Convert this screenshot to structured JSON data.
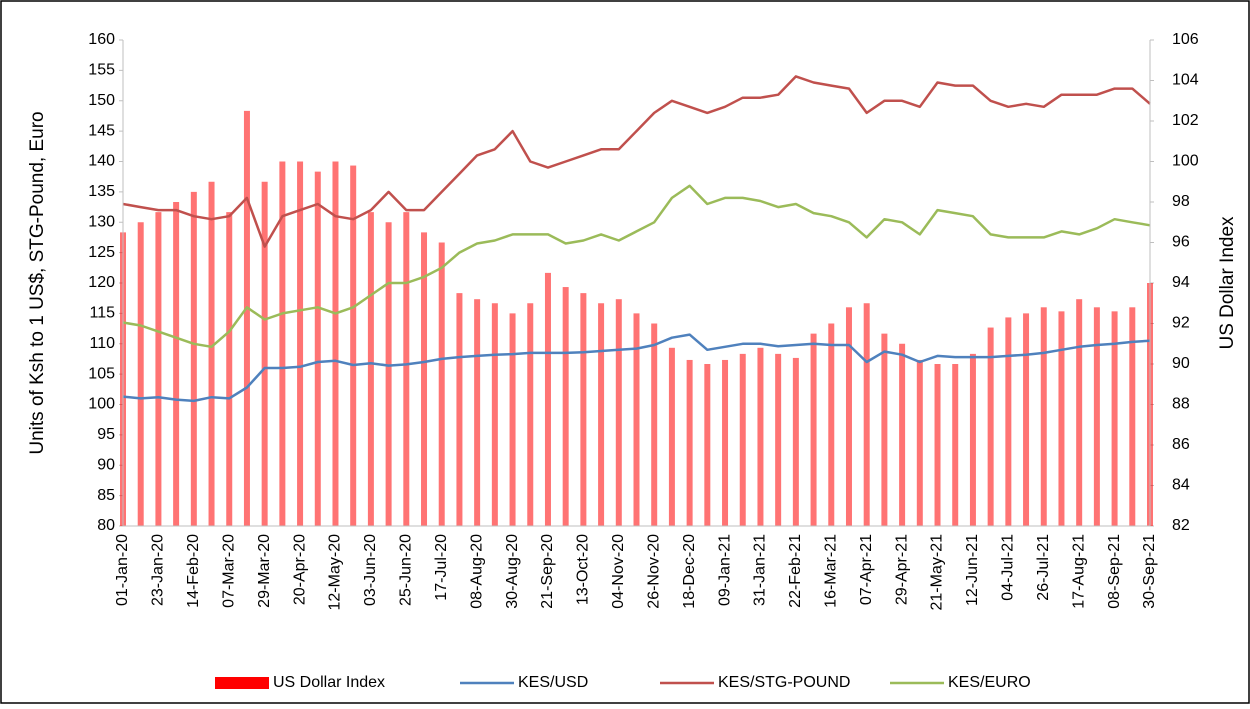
{
  "chart_data": {
    "type": "combo",
    "categories": [
      "01-Jan-20",
      null,
      "23-Jan-20",
      null,
      "14-Feb-20",
      null,
      "07-Mar-20",
      null,
      "29-Mar-20",
      null,
      "20-Apr-20",
      null,
      "12-May-20",
      null,
      "03-Jun-20",
      null,
      "25-Jun-20",
      null,
      "17-Jul-20",
      null,
      "08-Aug-20",
      null,
      "30-Aug-20",
      null,
      "21-Sep-20",
      null,
      "13-Oct-20",
      null,
      "04-Nov-20",
      null,
      "26-Nov-20",
      null,
      "18-Dec-20",
      null,
      "09-Jan-21",
      null,
      "31-Jan-21",
      null,
      "22-Feb-21",
      null,
      "16-Mar-21",
      null,
      "07-Apr-21",
      null,
      "29-Apr-21",
      null,
      "21-May-21",
      null,
      "12-Jun-21",
      null,
      "04-Jul-21",
      null,
      "26-Jul-21",
      null,
      "17-Aug-21",
      null,
      "08-Sep-21",
      null,
      "30-Sep-21"
    ],
    "y_label": "Units of Ksh to 1 US$, STG-Pound, Euro",
    "y2_label": "US Dollar Index",
    "ylim": [
      80,
      160
    ],
    "yticks": [
      80,
      85,
      90,
      95,
      100,
      105,
      110,
      115,
      120,
      125,
      130,
      135,
      140,
      145,
      150,
      155,
      160
    ],
    "y2lim": [
      82,
      106
    ],
    "y2ticks": [
      82,
      84,
      86,
      88,
      90,
      92,
      94,
      96,
      98,
      100,
      102,
      104,
      106
    ],
    "grid": false,
    "legend": "bottom",
    "series": [
      {
        "name": "US Dollar Index",
        "type": "bar",
        "axis": "y2",
        "color": "#ff0000",
        "values": [
          96.5,
          97,
          97.5,
          98,
          98.5,
          99,
          97.5,
          102.5,
          99,
          100,
          100,
          99.5,
          100,
          99.8,
          97.5,
          97,
          97.5,
          96.5,
          96,
          93.5,
          93.2,
          93,
          92.5,
          93,
          94.5,
          93.8,
          93.5,
          93,
          93.2,
          92.5,
          92,
          90.8,
          90.2,
          90,
          90.2,
          90.5,
          90.8,
          90.5,
          90.3,
          91.5,
          92,
          92.8,
          93,
          91.5,
          91,
          90.2,
          90,
          90,
          90.5,
          91.8,
          92.3,
          92.5,
          92.8,
          92.6,
          93.2,
          92.8,
          92.6,
          92.8,
          94
        ]
      },
      {
        "name": "KES/USD",
        "type": "line",
        "color": "#4f81bd",
        "values": [
          101.3,
          101,
          101.2,
          100.8,
          100.6,
          101.2,
          101,
          102.8,
          106,
          106,
          106.2,
          107,
          107.2,
          106.5,
          106.8,
          106.4,
          106.6,
          107,
          107.5,
          107.8,
          108,
          108.2,
          108.3,
          108.5,
          108.5,
          108.5,
          108.6,
          108.8,
          109,
          109.2,
          109.8,
          111,
          111.5,
          109,
          109.5,
          110,
          110,
          109.6,
          109.8,
          110,
          109.8,
          109.8,
          107,
          108.7,
          108.2,
          107,
          108,
          107.8,
          107.8,
          107.8,
          108,
          108.2,
          108.5,
          109,
          109.5,
          109.8,
          110,
          110.3,
          110.5
        ]
      },
      {
        "name": "KES/STG-POUND",
        "type": "line",
        "color": "#c0504d",
        "values": [
          133,
          132.5,
          132,
          132,
          131,
          130.5,
          131,
          134,
          126,
          131,
          132,
          133,
          131,
          130.5,
          132,
          135,
          132,
          132,
          135,
          138,
          141,
          142,
          145,
          140,
          139,
          140,
          141,
          142,
          142,
          145,
          148,
          150,
          149,
          148,
          149,
          150.5,
          150.5,
          151,
          154,
          153,
          152.5,
          152,
          148,
          150,
          150,
          149,
          153,
          152.5,
          152.5,
          150,
          149,
          149.5,
          149,
          151,
          151,
          151,
          152,
          152,
          149.5
        ]
      },
      {
        "name": "KES/EURO",
        "type": "line",
        "color": "#9bbb59",
        "values": [
          113.5,
          113,
          112,
          111,
          110,
          109.5,
          112,
          116,
          114,
          115,
          115.5,
          116,
          115,
          116,
          118,
          120,
          120,
          121,
          122.5,
          125,
          126.5,
          127,
          128,
          128,
          128,
          126.5,
          127,
          128,
          127,
          128.5,
          130,
          134,
          136,
          133,
          134,
          134,
          133.5,
          132.5,
          133,
          131.5,
          131,
          130,
          127.5,
          130.5,
          130,
          128,
          132,
          131.5,
          131,
          128,
          127.5,
          127.5,
          127.5,
          128.5,
          128,
          129,
          130.5,
          130,
          129.5
        ]
      }
    ]
  }
}
